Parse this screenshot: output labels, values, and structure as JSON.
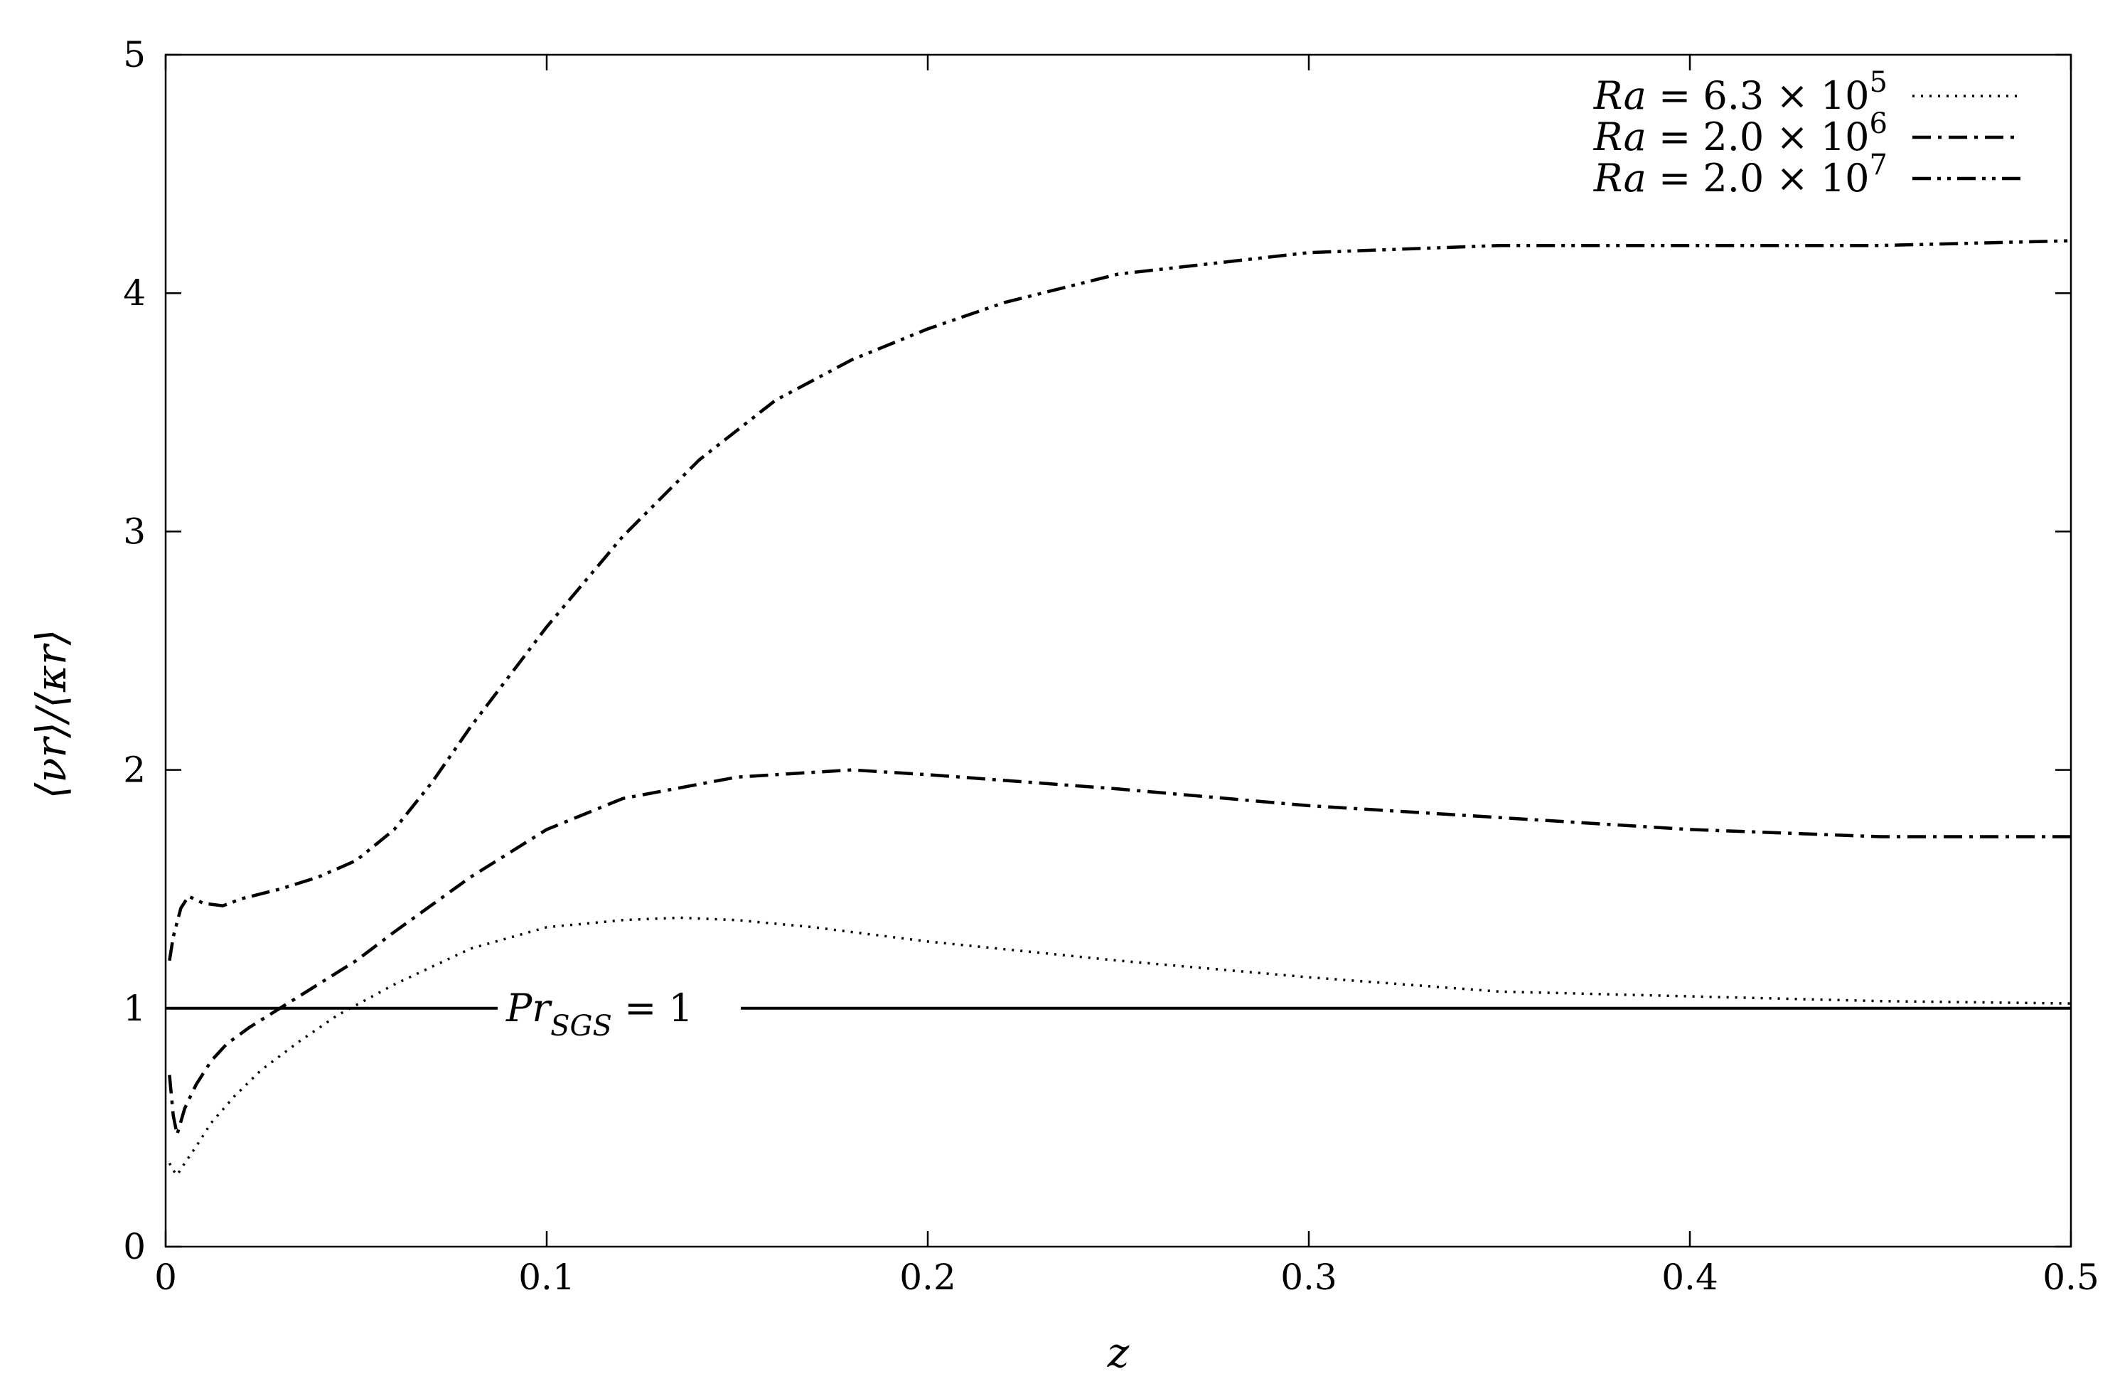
{
  "chart_data": {
    "type": "line",
    "xlabel": "z",
    "ylabel": "⟨νr⟩/⟨κr⟩",
    "xlim": [
      0,
      0.5
    ],
    "ylim": [
      0,
      5
    ],
    "xticks": [
      0,
      0.1,
      0.2,
      0.3,
      0.4,
      0.5
    ],
    "xtick_labels": [
      "0",
      "0.1",
      "0.2",
      "0.3",
      "0.4",
      "0.5"
    ],
    "yticks": [
      0,
      1,
      2,
      3,
      4,
      5
    ],
    "ytick_labels": [
      "0",
      "1",
      "2",
      "3",
      "4",
      "5"
    ],
    "grid": false,
    "legend_position": "top-right",
    "series": [
      {
        "name": "Ra = 6.3 × 10^5",
        "legend_prefix": "Ra",
        "legend_mid": " = 6.3 × 10",
        "legend_exp": "5",
        "style": "dotted",
        "x": [
          0.001,
          0.002,
          0.003,
          0.005,
          0.008,
          0.012,
          0.018,
          0.025,
          0.035,
          0.045,
          0.06,
          0.08,
          0.1,
          0.12,
          0.135,
          0.15,
          0.17,
          0.2,
          0.25,
          0.3,
          0.35,
          0.4,
          0.45,
          0.5
        ],
        "y": [
          0.35,
          0.32,
          0.3,
          0.35,
          0.42,
          0.52,
          0.63,
          0.74,
          0.86,
          0.97,
          1.1,
          1.25,
          1.34,
          1.37,
          1.38,
          1.37,
          1.34,
          1.28,
          1.2,
          1.13,
          1.07,
          1.05,
          1.03,
          1.02
        ]
      },
      {
        "name": "Ra = 2.0 × 10^6",
        "legend_prefix": "Ra",
        "legend_mid": " = 2.0 × 10",
        "legend_exp": "6",
        "style": "dash-dot",
        "x": [
          0.001,
          0.002,
          0.003,
          0.005,
          0.008,
          0.012,
          0.016,
          0.022,
          0.03,
          0.04,
          0.05,
          0.06,
          0.08,
          0.1,
          0.12,
          0.15,
          0.18,
          0.2,
          0.25,
          0.3,
          0.35,
          0.4,
          0.45,
          0.5
        ],
        "y": [
          0.72,
          0.55,
          0.47,
          0.58,
          0.68,
          0.78,
          0.85,
          0.92,
          1.0,
          1.1,
          1.2,
          1.32,
          1.55,
          1.75,
          1.88,
          1.97,
          2.0,
          1.98,
          1.92,
          1.85,
          1.8,
          1.75,
          1.72,
          1.72
        ]
      },
      {
        "name": "Ra = 2.0 × 10^7",
        "legend_prefix": "Ra",
        "legend_mid": " = 2.0 × 10",
        "legend_exp": "7",
        "style": "dash-dot-dot",
        "x": [
          0.001,
          0.002,
          0.004,
          0.006,
          0.01,
          0.015,
          0.02,
          0.03,
          0.04,
          0.05,
          0.06,
          0.07,
          0.08,
          0.1,
          0.12,
          0.14,
          0.16,
          0.18,
          0.2,
          0.22,
          0.25,
          0.3,
          0.35,
          0.4,
          0.45,
          0.5
        ],
        "y": [
          1.2,
          1.3,
          1.42,
          1.47,
          1.44,
          1.43,
          1.46,
          1.5,
          1.55,
          1.62,
          1.75,
          1.95,
          2.18,
          2.6,
          2.98,
          3.3,
          3.55,
          3.72,
          3.85,
          3.96,
          4.08,
          4.17,
          4.2,
          4.2,
          4.2,
          4.22
        ]
      }
    ],
    "reference_line": {
      "y": 1,
      "label_main": "Pr",
      "label_sub": "SGS",
      "label_rest": " = 1"
    }
  }
}
